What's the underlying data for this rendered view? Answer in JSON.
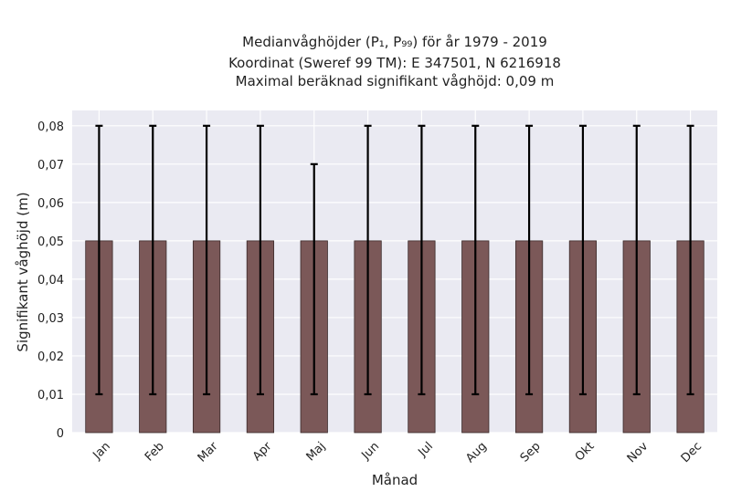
{
  "chart_data": {
    "type": "bar",
    "title_lines": [
      "Medianvåghöjder (P₁, P₉₉) för år 1979 - 2019",
      "Koordinat (Sweref 99 TM): E 347501, N 6216918",
      "Maximal beräknad signifikant våghöjd: 0,09 m"
    ],
    "xlabel": "Månad",
    "ylabel": "Signifikant våghöjd (m)",
    "categories": [
      "Jan",
      "Feb",
      "Mar",
      "Apr",
      "Maj",
      "Jun",
      "Jul",
      "Aug",
      "Sep",
      "Okt",
      "Nov",
      "Dec"
    ],
    "values": [
      0.05,
      0.05,
      0.05,
      0.05,
      0.05,
      0.05,
      0.05,
      0.05,
      0.05,
      0.05,
      0.05,
      0.05
    ],
    "error_low": [
      0.01,
      0.01,
      0.01,
      0.01,
      0.01,
      0.01,
      0.01,
      0.01,
      0.01,
      0.01,
      0.01,
      0.01
    ],
    "error_high": [
      0.08,
      0.08,
      0.08,
      0.08,
      0.07,
      0.08,
      0.08,
      0.08,
      0.08,
      0.08,
      0.08,
      0.08
    ],
    "ylim": [
      0,
      0.084
    ],
    "yticks": [
      0,
      0.01,
      0.02,
      0.03,
      0.04,
      0.05,
      0.06,
      0.07,
      0.08
    ],
    "ytick_labels": [
      "0",
      "0,01",
      "0,02",
      "0,03",
      "0,04",
      "0,05",
      "0,06",
      "0,07",
      "0,08"
    ],
    "grid": true,
    "colors": {
      "bar": "#7b5858",
      "bar_edge": "#3a2a2a",
      "error": "#000000",
      "plot_bg": "#eaeaf2",
      "grid": "#ffffff"
    }
  }
}
